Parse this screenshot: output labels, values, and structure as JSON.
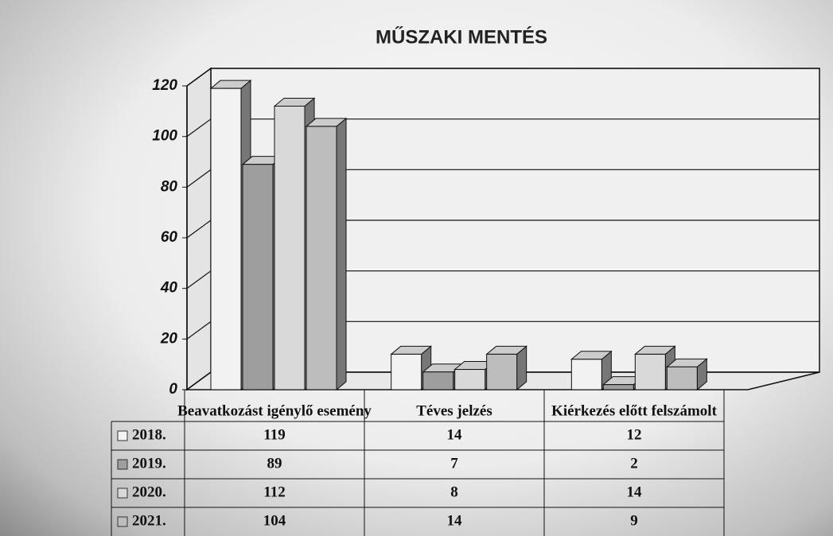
{
  "chart_data": {
    "type": "bar3d",
    "title": "MŰSZAKI MENTÉS",
    "categories": [
      "Beavatkozást igénylő esemény",
      "Téves jelzés",
      "Kiérkezés előtt felszámolt"
    ],
    "series": [
      {
        "name": "2018.",
        "color": "#f2f2f2",
        "values": [
          119,
          14,
          12
        ]
      },
      {
        "name": "2019.",
        "color": "#9e9e9e",
        "values": [
          89,
          7,
          2
        ]
      },
      {
        "name": "2020.",
        "color": "#d9d9d9",
        "values": [
          112,
          8,
          14
        ]
      },
      {
        "name": "2021.",
        "color": "#bdbdbd",
        "values": [
          104,
          14,
          9
        ]
      }
    ],
    "ylim": [
      0,
      120
    ],
    "yticks": [
      0,
      20,
      40,
      60,
      80,
      100,
      120
    ],
    "grid": true
  }
}
